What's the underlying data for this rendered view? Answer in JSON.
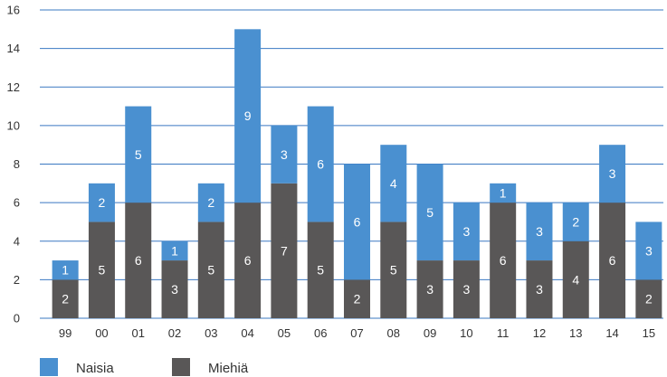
{
  "chart_data": {
    "type": "bar",
    "stacked": true,
    "categories": [
      "99",
      "00",
      "01",
      "02",
      "03",
      "04",
      "05",
      "06",
      "07",
      "08",
      "09",
      "10",
      "11",
      "12",
      "13",
      "14",
      "15"
    ],
    "series": [
      {
        "name": "Miehiä",
        "color": "#595757",
        "values": [
          2,
          5,
          6,
          3,
          5,
          6,
          7,
          5,
          2,
          5,
          3,
          3,
          6,
          3,
          4,
          6,
          2
        ]
      },
      {
        "name": "Naisia",
        "color": "#4a90d0",
        "values": [
          1,
          2,
          5,
          1,
          2,
          9,
          3,
          6,
          6,
          4,
          5,
          3,
          1,
          3,
          2,
          3,
          3
        ]
      }
    ],
    "title": "",
    "xlabel": "",
    "ylabel": "",
    "ylim": [
      0,
      16
    ],
    "yticks": [
      0,
      2,
      4,
      6,
      8,
      10,
      12,
      14,
      16
    ],
    "grid": true,
    "grid_color": "#3a78c2",
    "legend_position": "bottom-left",
    "legend_order": [
      "Naisia",
      "Miehiä"
    ]
  }
}
